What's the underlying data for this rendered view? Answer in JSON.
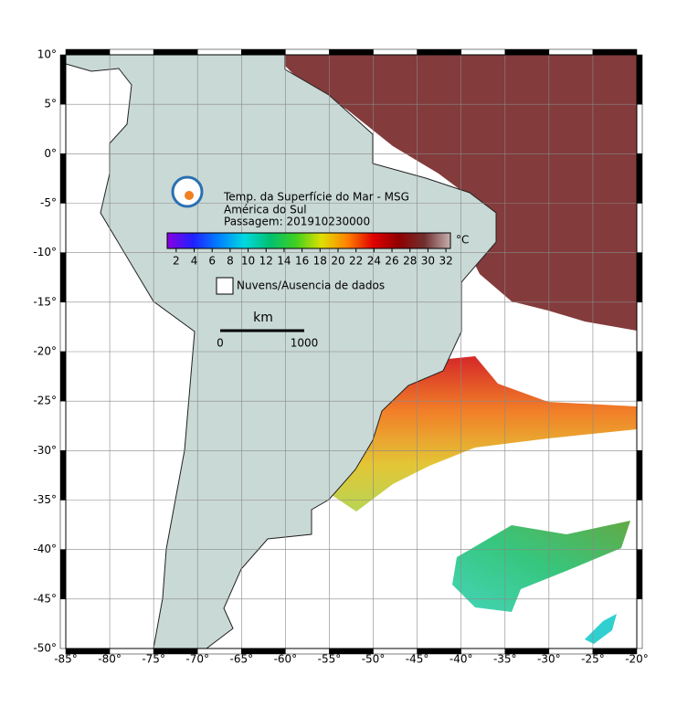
{
  "map": {
    "title": "Temp. da Superfície do Mar - MSG",
    "region": "América do Sul",
    "pass": "Passagem: 201910230000",
    "xlim": [
      -85,
      -20
    ],
    "ylim": [
      -50,
      10
    ],
    "xticks": [
      {
        "value": -85,
        "label": "-85°"
      },
      {
        "value": -80,
        "label": "-80°"
      },
      {
        "value": -75,
        "label": "-75°"
      },
      {
        "value": -70,
        "label": "-70°"
      },
      {
        "value": -65,
        "label": "-65°"
      },
      {
        "value": -60,
        "label": "-60°"
      },
      {
        "value": -55,
        "label": "-55°"
      },
      {
        "value": -50,
        "label": "-50°"
      },
      {
        "value": -45,
        "label": "-45°"
      },
      {
        "value": -40,
        "label": "-40°"
      },
      {
        "value": -35,
        "label": "-35°"
      },
      {
        "value": -30,
        "label": "-30°"
      },
      {
        "value": -25,
        "label": "-25°"
      },
      {
        "value": -20,
        "label": "-20°"
      }
    ],
    "yticks": [
      {
        "value": 10,
        "label": "10°"
      },
      {
        "value": 5,
        "label": "5°"
      },
      {
        "value": 0,
        "label": "0°"
      },
      {
        "value": -5,
        "label": "-5°"
      },
      {
        "value": -10,
        "label": "-10°"
      },
      {
        "value": -15,
        "label": "-15°"
      },
      {
        "value": -20,
        "label": "-20°"
      },
      {
        "value": -25,
        "label": "-25°"
      },
      {
        "value": -30,
        "label": "-30°"
      },
      {
        "value": -35,
        "label": "-35°"
      },
      {
        "value": -40,
        "label": "-40°"
      },
      {
        "value": -45,
        "label": "-45°"
      },
      {
        "value": -50,
        "label": "-50°"
      }
    ],
    "grid": true,
    "colorbar": {
      "unit": "°C",
      "lim": [
        1,
        32.5
      ],
      "ticks": [
        2,
        4,
        6,
        8,
        10,
        12,
        14,
        16,
        18,
        20,
        22,
        24,
        26,
        28,
        30,
        32
      ],
      "colors": [
        "#8a00e0",
        "#2020ff",
        "#0080ff",
        "#00d8e0",
        "#00c070",
        "#40d020",
        "#e0e000",
        "#ff8000",
        "#e00000",
        "#900000",
        "#703030",
        "#c8b0b0"
      ]
    },
    "no_data_label": "Nuvens/Ausencia de dados",
    "scale": {
      "unit": "km",
      "start": "0",
      "end": "1000"
    }
  }
}
